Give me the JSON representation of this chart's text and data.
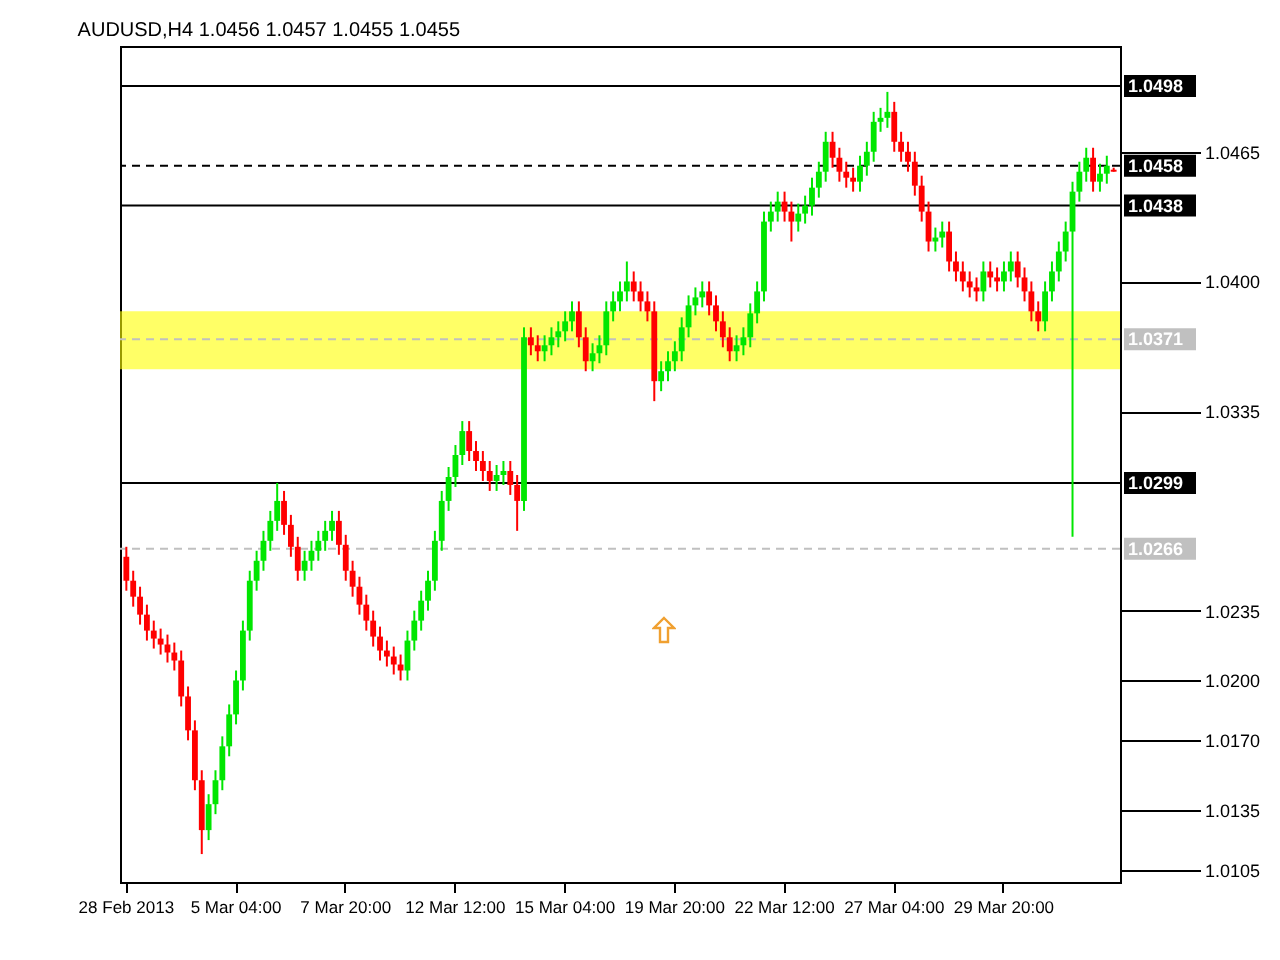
{
  "chart_data": {
    "type": "candlestick",
    "title": "AUDUSD,H4  1.0456 1.0457 1.0455 1.0455",
    "categories": [
      "28 Feb 2013",
      null,
      null,
      null,
      null,
      null,
      null,
      null,
      null,
      null,
      null,
      null,
      null,
      null,
      null,
      null,
      "5 Mar 04:00",
      null,
      null,
      null,
      null,
      null,
      null,
      null,
      null,
      null,
      null,
      null,
      null,
      null,
      null,
      null,
      "7 Mar 20:00",
      null,
      null,
      null,
      null,
      null,
      null,
      null,
      null,
      null,
      null,
      null,
      null,
      null,
      null,
      null,
      "12 Mar 12:00",
      null,
      null,
      null,
      null,
      null,
      null,
      null,
      null,
      null,
      null,
      null,
      null,
      null,
      null,
      null,
      "15 Mar 04:00",
      null,
      null,
      null,
      null,
      null,
      null,
      null,
      null,
      null,
      null,
      null,
      null,
      null,
      null,
      null,
      "19 Mar 20:00",
      null,
      null,
      null,
      null,
      null,
      null,
      null,
      null,
      null,
      null,
      null,
      null,
      null,
      null,
      null,
      "22 Mar 12:00",
      null,
      null,
      null,
      null,
      null,
      null,
      null,
      null,
      null,
      null,
      null,
      null,
      null,
      null,
      null,
      "27 Mar 04:00",
      null,
      null,
      null,
      null,
      null,
      null,
      null,
      null,
      null,
      null,
      null,
      null,
      null,
      null,
      null,
      "29 Mar 20:00",
      null,
      null,
      null,
      null,
      null,
      null,
      null,
      null,
      null,
      null,
      null,
      null,
      null,
      null,
      null,
      null
    ],
    "ohlc": [
      [
        1.0262,
        1.0267,
        1.0245,
        1.025
      ],
      [
        1.025,
        1.0255,
        1.0237,
        1.0242
      ],
      [
        1.0242,
        1.0247,
        1.0228,
        1.0233
      ],
      [
        1.0233,
        1.0238,
        1.022,
        1.0225
      ],
      [
        1.0225,
        1.023,
        1.0216,
        1.0221
      ],
      [
        1.0221,
        1.0226,
        1.0213,
        1.0218
      ],
      [
        1.0218,
        1.0223,
        1.0209,
        1.0214
      ],
      [
        1.0214,
        1.0219,
        1.0205,
        1.021
      ],
      [
        1.021,
        1.0215,
        1.0187,
        1.0192
      ],
      [
        1.0192,
        1.0197,
        1.017,
        1.0175
      ],
      [
        1.0175,
        1.018,
        1.0145,
        1.015
      ],
      [
        1.015,
        1.0155,
        1.0113,
        1.0125
      ],
      [
        1.0125,
        1.0143,
        1.012,
        1.0138
      ],
      [
        1.0138,
        1.0155,
        1.0133,
        1.015
      ],
      [
        1.015,
        1.0172,
        1.0145,
        1.0167
      ],
      [
        1.0167,
        1.0188,
        1.0162,
        1.0183
      ],
      [
        1.0183,
        1.0205,
        1.0178,
        1.02
      ],
      [
        1.02,
        1.023,
        1.0195,
        1.0225
      ],
      [
        1.0225,
        1.0255,
        1.022,
        1.025
      ],
      [
        1.025,
        1.0265,
        1.0245,
        1.026
      ],
      [
        1.026,
        1.0275,
        1.0255,
        1.027
      ],
      [
        1.027,
        1.0285,
        1.0265,
        1.028
      ],
      [
        1.028,
        1.0299,
        1.0275,
        1.029
      ],
      [
        1.029,
        1.0295,
        1.0273,
        1.0278
      ],
      [
        1.0278,
        1.0283,
        1.0262,
        1.0267
      ],
      [
        1.0267,
        1.0272,
        1.025,
        1.0255
      ],
      [
        1.0255,
        1.0265,
        1.025,
        1.026
      ],
      [
        1.026,
        1.027,
        1.0255,
        1.0265
      ],
      [
        1.0265,
        1.0275,
        1.026,
        1.027
      ],
      [
        1.027,
        1.028,
        1.0265,
        1.0275
      ],
      [
        1.0275,
        1.0285,
        1.027,
        1.028
      ],
      [
        1.028,
        1.0285,
        1.0263,
        1.0268
      ],
      [
        1.0268,
        1.0273,
        1.025,
        1.0255
      ],
      [
        1.0255,
        1.026,
        1.0242,
        1.0247
      ],
      [
        1.0247,
        1.0252,
        1.0233,
        1.0238
      ],
      [
        1.0238,
        1.0243,
        1.0225,
        1.023
      ],
      [
        1.023,
        1.0235,
        1.0217,
        1.0222
      ],
      [
        1.0222,
        1.0227,
        1.021,
        1.0215
      ],
      [
        1.0215,
        1.022,
        1.0207,
        1.0212
      ],
      [
        1.0212,
        1.0217,
        1.0203,
        1.0208
      ],
      [
        1.0208,
        1.0213,
        1.02,
        1.0205
      ],
      [
        1.0205,
        1.0225,
        1.02,
        1.022
      ],
      [
        1.022,
        1.0235,
        1.0215,
        1.023
      ],
      [
        1.023,
        1.0245,
        1.0225,
        1.024
      ],
      [
        1.024,
        1.0255,
        1.0235,
        1.025
      ],
      [
        1.025,
        1.0275,
        1.0245,
        1.027
      ],
      [
        1.027,
        1.0295,
        1.0265,
        1.029
      ],
      [
        1.029,
        1.0307,
        1.0285,
        1.0302
      ],
      [
        1.0302,
        1.0318,
        1.0297,
        1.0313
      ],
      [
        1.0313,
        1.033,
        1.0308,
        1.0325
      ],
      [
        1.0325,
        1.033,
        1.031,
        1.0315
      ],
      [
        1.0315,
        1.032,
        1.0305,
        1.031
      ],
      [
        1.031,
        1.0315,
        1.03,
        1.0305
      ],
      [
        1.0305,
        1.031,
        1.0295,
        1.03
      ],
      [
        1.03,
        1.0308,
        1.0295,
        1.0303
      ],
      [
        1.0303,
        1.031,
        1.0298,
        1.0305
      ],
      [
        1.0305,
        1.031,
        1.0293,
        1.0298
      ],
      [
        1.0298,
        1.0303,
        1.0275,
        1.029
      ],
      [
        1.029,
        1.0377,
        1.0285,
        1.0372
      ],
      [
        1.0372,
        1.0377,
        1.0363,
        1.0368
      ],
      [
        1.0368,
        1.0373,
        1.036,
        1.0365
      ],
      [
        1.0365,
        1.0373,
        1.036,
        1.0368
      ],
      [
        1.0368,
        1.0377,
        1.0363,
        1.0372
      ],
      [
        1.0372,
        1.038,
        1.0367,
        1.0375
      ],
      [
        1.0375,
        1.0385,
        1.037,
        1.038
      ],
      [
        1.038,
        1.039,
        1.0375,
        1.0385
      ],
      [
        1.0385,
        1.039,
        1.0367,
        1.0372
      ],
      [
        1.0372,
        1.0377,
        1.0355,
        1.036
      ],
      [
        1.036,
        1.0369,
        1.0355,
        1.0364
      ],
      [
        1.0364,
        1.0373,
        1.0359,
        1.0368
      ],
      [
        1.0368,
        1.039,
        1.0363,
        1.0385
      ],
      [
        1.0385,
        1.0395,
        1.038,
        1.039
      ],
      [
        1.039,
        1.04,
        1.0385,
        1.0395
      ],
      [
        1.0395,
        1.041,
        1.039,
        1.04
      ],
      [
        1.04,
        1.0405,
        1.039,
        1.0395
      ],
      [
        1.0395,
        1.04,
        1.0385,
        1.039
      ],
      [
        1.039,
        1.0395,
        1.038,
        1.0385
      ],
      [
        1.0385,
        1.039,
        1.034,
        1.035
      ],
      [
        1.035,
        1.036,
        1.0345,
        1.0355
      ],
      [
        1.0355,
        1.0365,
        1.035,
        1.036
      ],
      [
        1.036,
        1.037,
        1.0355,
        1.0365
      ],
      [
        1.0365,
        1.0382,
        1.036,
        1.0377
      ],
      [
        1.0377,
        1.0393,
        1.0372,
        1.0388
      ],
      [
        1.0388,
        1.0397,
        1.0383,
        1.0392
      ],
      [
        1.0392,
        1.04,
        1.0387,
        1.0395
      ],
      [
        1.0395,
        1.04,
        1.0383,
        1.0388
      ],
      [
        1.0388,
        1.0393,
        1.0375,
        1.038
      ],
      [
        1.038,
        1.0385,
        1.0367,
        1.0372
      ],
      [
        1.0372,
        1.0377,
        1.036,
        1.0365
      ],
      [
        1.0365,
        1.0373,
        1.036,
        1.0368
      ],
      [
        1.0368,
        1.0377,
        1.0363,
        1.0372
      ],
      [
        1.0372,
        1.0389,
        1.0367,
        1.0384
      ],
      [
        1.0384,
        1.04,
        1.0379,
        1.0395
      ],
      [
        1.0395,
        1.0435,
        1.039,
        1.043
      ],
      [
        1.043,
        1.044,
        1.0425,
        1.0435
      ],
      [
        1.0435,
        1.0445,
        1.043,
        1.044
      ],
      [
        1.044,
        1.0445,
        1.043,
        1.0435
      ],
      [
        1.0435,
        1.044,
        1.042,
        1.043
      ],
      [
        1.043,
        1.0439,
        1.0425,
        1.0434
      ],
      [
        1.0434,
        1.0443,
        1.0429,
        1.0438
      ],
      [
        1.0438,
        1.0452,
        1.0433,
        1.0447
      ],
      [
        1.0447,
        1.046,
        1.0442,
        1.0455
      ],
      [
        1.0455,
        1.0475,
        1.045,
        1.047
      ],
      [
        1.047,
        1.0475,
        1.0457,
        1.0462
      ],
      [
        1.0462,
        1.0467,
        1.045,
        1.0455
      ],
      [
        1.0455,
        1.046,
        1.0447,
        1.0452
      ],
      [
        1.0452,
        1.0457,
        1.0445,
        1.045
      ],
      [
        1.045,
        1.0463,
        1.0445,
        1.0458
      ],
      [
        1.0458,
        1.047,
        1.0453,
        1.0465
      ],
      [
        1.0465,
        1.0485,
        1.046,
        1.048
      ],
      [
        1.048,
        1.0487,
        1.0475,
        1.0482
      ],
      [
        1.0482,
        1.0495,
        1.0477,
        1.0485
      ],
      [
        1.0485,
        1.049,
        1.0465,
        1.047
      ],
      [
        1.047,
        1.0475,
        1.046,
        1.0465
      ],
      [
        1.0465,
        1.047,
        1.0455,
        1.046
      ],
      [
        1.046,
        1.0465,
        1.0443,
        1.0448
      ],
      [
        1.0448,
        1.0453,
        1.043,
        1.0435
      ],
      [
        1.0435,
        1.044,
        1.0415,
        1.042
      ],
      [
        1.042,
        1.0427,
        1.0415,
        1.0422
      ],
      [
        1.0422,
        1.043,
        1.0417,
        1.0425
      ],
      [
        1.0425,
        1.043,
        1.0405,
        1.041
      ],
      [
        1.041,
        1.0415,
        1.04,
        1.0405
      ],
      [
        1.0405,
        1.041,
        1.0395,
        1.04
      ],
      [
        1.04,
        1.0405,
        1.0392,
        1.0397
      ],
      [
        1.0397,
        1.0402,
        1.039,
        1.0395
      ],
      [
        1.0395,
        1.041,
        1.039,
        1.0405
      ],
      [
        1.0405,
        1.041,
        1.0397,
        1.0402
      ],
      [
        1.0402,
        1.0407,
        1.0395,
        1.04
      ],
      [
        1.04,
        1.041,
        1.0395,
        1.0405
      ],
      [
        1.0405,
        1.0415,
        1.04,
        1.041
      ],
      [
        1.041,
        1.0415,
        1.0397,
        1.0402
      ],
      [
        1.0402,
        1.0407,
        1.039,
        1.0395
      ],
      [
        1.0395,
        1.04,
        1.038,
        1.0385
      ],
      [
        1.0385,
        1.039,
        1.0375,
        1.038
      ],
      [
        1.038,
        1.04,
        1.0375,
        1.0395
      ],
      [
        1.0395,
        1.041,
        1.039,
        1.0405
      ],
      [
        1.0405,
        1.042,
        1.04,
        1.0415
      ],
      [
        1.0415,
        1.043,
        1.041,
        1.0425
      ],
      [
        1.0425,
        1.045,
        1.0272,
        1.0445
      ],
      [
        1.0445,
        1.046,
        1.044,
        1.0455
      ],
      [
        1.0455,
        1.0467,
        1.045,
        1.0462
      ],
      [
        1.0462,
        1.0467,
        1.0445,
        1.045
      ],
      [
        1.045,
        1.0459,
        1.0445,
        1.0454
      ],
      [
        1.0454,
        1.0463,
        1.0449,
        1.0458
      ],
      [
        1.0456,
        1.0457,
        1.0455,
        1.0455
      ]
    ],
    "ylim": [
      1.0099,
      1.0518
    ],
    "yticks": [
      1.0105,
      1.0135,
      {
        "value": 1.017,
        "label": "1.0170"
      },
      {
        "value": 1.02,
        "label": "1.0200"
      },
      1.0235,
      1.0335,
      {
        "value": 1.04,
        "label": "1.0400"
      },
      1.0465
    ],
    "ref_lines": [
      {
        "axis": "y",
        "value": 1.0498,
        "label": "1.0498",
        "color": "#000000",
        "line_style": "solid"
      },
      {
        "axis": "y",
        "value": 1.0458,
        "label": "1.0458",
        "color": "#000000",
        "line_style": "dashed"
      },
      {
        "axis": "y",
        "value": 1.0438,
        "label": "1.0438",
        "color": "#000000",
        "line_style": "solid"
      },
      {
        "axis": "y",
        "value": 1.0371,
        "label": "1.0371",
        "color": "#c0c0c0",
        "line_style": "dashed"
      },
      {
        "axis": "y",
        "value": 1.0299,
        "label": "1.0299",
        "color": "#000000",
        "line_style": "solid"
      },
      {
        "axis": "y",
        "value": 1.0266,
        "label": "1.0266",
        "color": "#c0c0c0",
        "line_style": "dashed"
      }
    ],
    "bands": [
      {
        "axis": "y",
        "from": 1.0356,
        "to": 1.0385,
        "color": "#ffff00"
      }
    ]
  }
}
